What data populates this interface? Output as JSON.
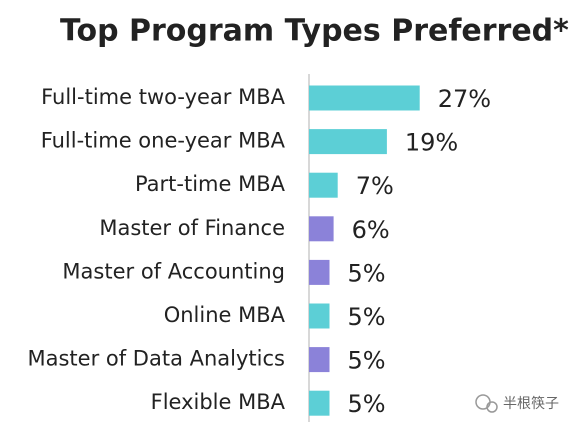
{
  "chart_data": {
    "type": "bar",
    "orientation": "horizontal",
    "title": "Top Program Types Preferred*",
    "categories": [
      "Full-time two-year MBA",
      "Full-time one-year MBA",
      "Part-time MBA",
      "Master of Finance",
      "Master of Accounting",
      "Online MBA",
      "Master of Data Analytics",
      "Flexible MBA"
    ],
    "values": [
      27,
      19,
      7,
      6,
      5,
      5,
      5,
      5
    ],
    "value_labels": [
      "27%",
      "19%",
      "7%",
      "6%",
      "5%",
      "5%",
      "5%",
      "5%"
    ],
    "colors": [
      "#5ccfd6",
      "#5ccfd6",
      "#5ccfd6",
      "#8b82d9",
      "#8b82d9",
      "#5ccfd6",
      "#8b82d9",
      "#5ccfd6"
    ],
    "watermark": "半根筷子"
  }
}
